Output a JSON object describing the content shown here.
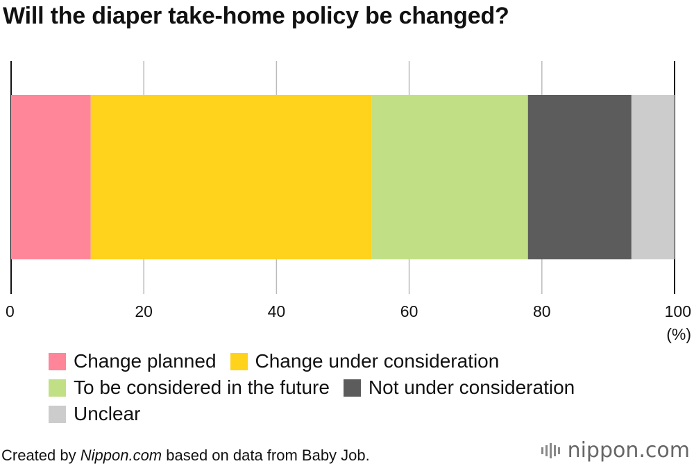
{
  "chart_data": {
    "type": "bar",
    "orientation": "horizontal-stacked-100",
    "title": "Will the diaper take-home policy be changed?",
    "unit_label": "(%)",
    "xlim": [
      0,
      100
    ],
    "x_ticks": [
      0,
      20,
      40,
      60,
      80,
      100
    ],
    "grid": true,
    "series": [
      {
        "name": "Change planned",
        "value": 12,
        "color": "#FF8599"
      },
      {
        "name": "Change under consideration",
        "value": 42.3,
        "color": "#FFD21C"
      },
      {
        "name": "To be considered in the future",
        "value": 23.6,
        "color": "#C1E085"
      },
      {
        "name": "Not under consideration",
        "value": 15.6,
        "color": "#5C5C5C"
      },
      {
        "name": "Unclear",
        "value": 6.5,
        "color": "#CCCCCC"
      }
    ]
  },
  "footer": {
    "prefix": "Created by ",
    "source": "Nippon.com",
    "suffix": " based on data from Baby Job."
  },
  "logo": {
    "text": "nippon",
    "dot": ".",
    "tld": "com",
    "color": "#666666"
  }
}
